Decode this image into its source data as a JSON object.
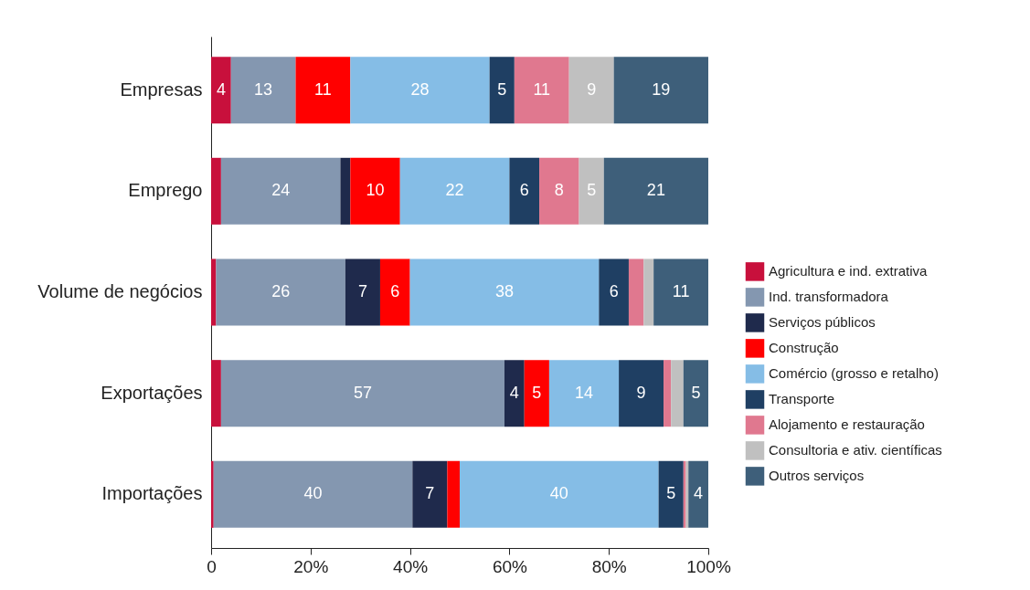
{
  "chart_data": {
    "type": "bar",
    "orientation": "horizontal",
    "stacked": true,
    "categories": [
      "Empresas",
      "Emprego",
      "Volume de negócios",
      "Exportações",
      "Importações"
    ],
    "xlim": [
      0,
      100
    ],
    "xticks": [
      {
        "value": 0,
        "label": "0"
      },
      {
        "value": 20,
        "label": "20%"
      },
      {
        "value": 40,
        "label": "40%"
      },
      {
        "value": 60,
        "label": "60%"
      },
      {
        "value": 80,
        "label": "80%"
      },
      {
        "value": 100,
        "label": "100%"
      }
    ],
    "grid": false,
    "legend": "right",
    "series": [
      {
        "name": "Agricultura e ind. extrativa",
        "color": "#c8103c",
        "values": [
          4,
          2,
          1,
          2,
          0.5
        ],
        "value_labels": [
          "4",
          null,
          null,
          null,
          null
        ]
      },
      {
        "name": "Ind. transformadora",
        "color": "#8497b0",
        "values": [
          13,
          24,
          26,
          57,
          40
        ],
        "value_labels": [
          "13",
          "24",
          "26",
          "57",
          "40"
        ]
      },
      {
        "name": "Serviços públicos",
        "color": "#1f2a4c",
        "values": [
          0,
          2,
          7,
          4,
          7
        ],
        "value_labels": [
          null,
          null,
          "7",
          "4",
          "7"
        ]
      },
      {
        "name": "Construção",
        "color": "#ff0000",
        "values": [
          11,
          10,
          6,
          5,
          2.5
        ],
        "value_labels": [
          "11",
          "10",
          "6",
          "5",
          null
        ]
      },
      {
        "name": "Comércio (grosso e retalho)",
        "color": "#85bde6",
        "values": [
          28,
          22,
          38,
          14,
          40
        ],
        "value_labels": [
          "28",
          "22",
          "38",
          "14",
          "40"
        ]
      },
      {
        "name": "Transporte",
        "color": "#1f3f63",
        "values": [
          5,
          6,
          6,
          9,
          5
        ],
        "value_labels": [
          "5",
          "6",
          "6",
          "9",
          "5"
        ]
      },
      {
        "name": "Alojamento e restauração",
        "color": "#e0788f",
        "values": [
          11,
          8,
          3,
          1.5,
          0.5
        ],
        "value_labels": [
          "11",
          "8",
          null,
          null,
          null
        ]
      },
      {
        "name": "Consultoria e ativ. científicas",
        "color": "#c0c0c0",
        "values": [
          9,
          5,
          2,
          2.5,
          0.5
        ],
        "value_labels": [
          "9",
          "5",
          null,
          null,
          null
        ]
      },
      {
        "name": "Outros serviços",
        "color": "#3e5f7a",
        "values": [
          19,
          21,
          11,
          5,
          4
        ],
        "value_labels": [
          "19",
          "21",
          "11",
          "5",
          "4"
        ]
      }
    ]
  }
}
